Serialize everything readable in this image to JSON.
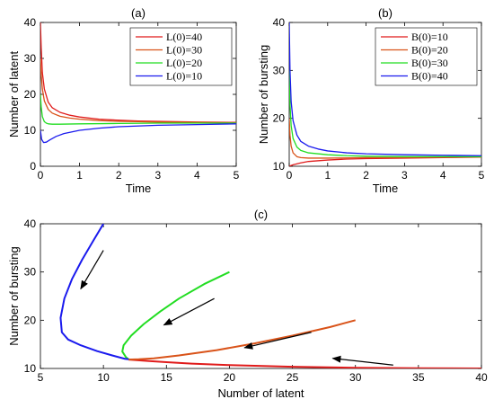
{
  "chart_data": [
    {
      "type": "line",
      "title": "(a)",
      "xlabel": "Time",
      "ylabel": "Number of latent",
      "xlim": [
        0,
        5
      ],
      "ylim": [
        0,
        40
      ],
      "xticks": [
        "0",
        "1",
        "2",
        "3",
        "4",
        "5"
      ],
      "yticks": [
        "0",
        "10",
        "20",
        "30",
        "40"
      ],
      "legend_position": "top-right",
      "series": [
        {
          "name": "L(0)=40",
          "color": "#e01b1b",
          "x": [
            0,
            0.02,
            0.05,
            0.1,
            0.2,
            0.3,
            0.5,
            0.75,
            1,
            1.5,
            2,
            2.5,
            3,
            4,
            5
          ],
          "y": [
            40,
            33,
            26,
            21.5,
            17.8,
            16.3,
            15,
            14.2,
            13.7,
            13.1,
            12.8,
            12.6,
            12.5,
            12.3,
            12.2
          ]
        },
        {
          "name": "L(0)=30",
          "color": "#d95319",
          "x": [
            0,
            0.02,
            0.05,
            0.1,
            0.2,
            0.3,
            0.5,
            0.75,
            1,
            1.5,
            2,
            2.5,
            3,
            4,
            5
          ],
          "y": [
            30,
            25.5,
            21.5,
            18.2,
            15.8,
            14.8,
            13.9,
            13.4,
            13.1,
            12.7,
            12.5,
            12.4,
            12.3,
            12.2,
            12.1
          ]
        },
        {
          "name": "L(0)=20",
          "color": "#22dd22",
          "x": [
            0,
            0.02,
            0.05,
            0.1,
            0.15,
            0.2,
            0.3,
            0.5,
            1,
            2,
            3,
            4,
            5
          ],
          "y": [
            20,
            16.5,
            13.8,
            12.4,
            12,
            11.8,
            11.7,
            11.7,
            11.8,
            11.9,
            12,
            12,
            12
          ]
        },
        {
          "name": "L(0)=10",
          "color": "#1a1aee",
          "x": [
            0,
            0.03,
            0.08,
            0.15,
            0.25,
            0.4,
            0.6,
            1,
            1.5,
            2,
            3,
            4,
            5
          ],
          "y": [
            10,
            7.5,
            6.6,
            6.7,
            7.4,
            8.3,
            9.1,
            10,
            10.6,
            11,
            11.4,
            11.6,
            11.8
          ]
        }
      ]
    },
    {
      "type": "line",
      "title": "(b)",
      "xlabel": "Time",
      "ylabel": "Number of bursting",
      "xlim": [
        0,
        5
      ],
      "ylim": [
        10,
        40
      ],
      "xticks": [
        "0",
        "1",
        "2",
        "3",
        "4",
        "5"
      ],
      "yticks": [
        "10",
        "20",
        "30",
        "40"
      ],
      "legend_position": "top-right",
      "series": [
        {
          "name": "B(0)=10",
          "color": "#e01b1b",
          "x": [
            0,
            0.1,
            0.3,
            0.5,
            1,
            1.5,
            2,
            3,
            4,
            5
          ],
          "y": [
            10,
            10.3,
            10.7,
            11,
            11.3,
            11.5,
            11.6,
            11.7,
            11.8,
            11.9
          ]
        },
        {
          "name": "B(0)=20",
          "color": "#d95319",
          "x": [
            0,
            0.02,
            0.05,
            0.1,
            0.2,
            0.3,
            0.5,
            1,
            2,
            3,
            4,
            5
          ],
          "y": [
            20,
            16.5,
            14.2,
            12.8,
            12,
            11.8,
            11.7,
            11.7,
            11.8,
            11.8,
            11.9,
            11.9
          ]
        },
        {
          "name": "B(0)=30",
          "color": "#22dd22",
          "x": [
            0,
            0.02,
            0.05,
            0.1,
            0.2,
            0.3,
            0.5,
            1,
            1.5,
            2,
            3,
            4,
            5
          ],
          "y": [
            30,
            23,
            18.5,
            15.8,
            14,
            13.3,
            12.8,
            12.4,
            12.2,
            12.1,
            12,
            12,
            12
          ]
        },
        {
          "name": "B(0)=40",
          "color": "#1a1aee",
          "x": [
            0,
            0.02,
            0.05,
            0.1,
            0.2,
            0.3,
            0.5,
            0.75,
            1,
            1.5,
            2,
            3,
            4,
            5
          ],
          "y": [
            40,
            30,
            23.5,
            19.5,
            16.5,
            15.2,
            14.2,
            13.6,
            13.2,
            12.8,
            12.6,
            12.4,
            12.3,
            12.2
          ]
        }
      ]
    },
    {
      "type": "line",
      "title": "(c)",
      "xlabel": "Number of latent",
      "ylabel": "Number of bursting",
      "xlim": [
        5,
        40
      ],
      "ylim": [
        10,
        40
      ],
      "xticks": [
        "5",
        "10",
        "15",
        "20",
        "25",
        "30",
        "35",
        "40"
      ],
      "yticks": [
        "10",
        "20",
        "30",
        "40"
      ],
      "series": [
        {
          "color": "#e01b1b",
          "x": [
            40,
            35,
            30,
            25,
            20,
            17,
            15,
            13.5,
            12.5,
            12
          ],
          "y": [
            10,
            10.05,
            10.15,
            10.35,
            10.7,
            11,
            11.3,
            11.55,
            11.75,
            11.85
          ]
        },
        {
          "color": "#d95319",
          "x": [
            30,
            28,
            25,
            22,
            19,
            16,
            14,
            12.8,
            12
          ],
          "y": [
            20,
            18.6,
            16.8,
            15.2,
            13.8,
            12.7,
            12.1,
            11.9,
            11.85
          ]
        },
        {
          "color": "#22dd22",
          "x": [
            20,
            18,
            16,
            14.5,
            13.2,
            12.2,
            11.6,
            11.5,
            11.8,
            12
          ],
          "y": [
            30,
            27.5,
            24.5,
            21.8,
            19.2,
            16.8,
            14.8,
            13.5,
            12.3,
            11.9
          ]
        },
        {
          "color": "#1a1aee",
          "x": [
            10,
            9.2,
            8.3,
            7.5,
            6.9,
            6.6,
            6.7,
            7.2,
            8.2,
            9.5,
            10.7,
            11.7,
            12
          ],
          "y": [
            40,
            36.5,
            32.5,
            28.5,
            24.5,
            20.5,
            17.5,
            16,
            14.8,
            13.6,
            12.7,
            12,
            11.9
          ]
        }
      ],
      "arrows": [
        {
          "from": [
            10,
            34.5
          ],
          "to": [
            8.2,
            26.5
          ]
        },
        {
          "from": [
            18.8,
            24.5
          ],
          "to": [
            14.8,
            19
          ]
        },
        {
          "from": [
            26.5,
            17.5
          ],
          "to": [
            21.2,
            14.3
          ]
        },
        {
          "from": [
            33,
            10.7
          ],
          "to": [
            28.2,
            12.1
          ]
        }
      ]
    }
  ]
}
